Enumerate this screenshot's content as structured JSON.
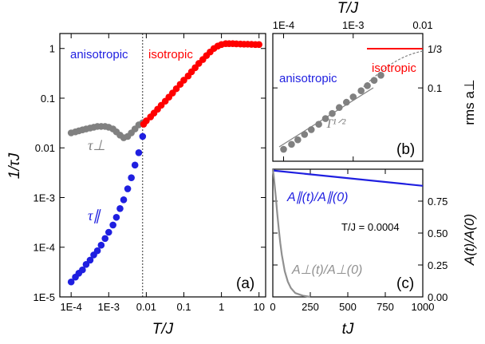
{
  "chart_data": [
    {
      "panel": "a",
      "type": "scatter",
      "panel_label": "(a)",
      "xlabel": "T/J",
      "ylabel": "1/τJ",
      "xscale": "log",
      "yscale": "log",
      "xlim": [
        5e-05,
        15
      ],
      "ylim": [
        1e-05,
        2
      ],
      "x_tick_labels": [
        "1E-4",
        "1E-3",
        "0.01",
        "0.1",
        "1",
        "10"
      ],
      "y_tick_labels": [
        "1E-5",
        "1E-4",
        "1E-3",
        "0.01",
        "0.1",
        "1"
      ],
      "crossover_line_x": 0.008,
      "region_labels": {
        "anisotropic": "anisotropic",
        "isotropic": "isotropic"
      },
      "series": [
        {
          "name": "τ∥",
          "color": "#1f1fe0",
          "x": [
            0.0001,
            0.00013,
            0.00016,
            0.0002,
            0.00025,
            0.00032,
            0.0004,
            0.0005,
            0.00063,
            0.0008,
            0.001,
            0.0013,
            0.0016,
            0.002,
            0.0025,
            0.0032,
            0.004,
            0.005,
            0.0063,
            0.008
          ],
          "y": [
            2e-05,
            2.5e-05,
            3e-05,
            3.5e-05,
            4.5e-05,
            5.5e-05,
            7e-05,
            8.5e-05,
            0.00011,
            0.00015,
            0.0002,
            0.00028,
            0.0004,
            0.0006,
            0.0009,
            0.0015,
            0.0025,
            0.0045,
            0.008,
            0.017
          ]
        },
        {
          "name": "τ⊥",
          "color": "#808080",
          "x": [
            0.0001,
            0.00013,
            0.00016,
            0.0002,
            0.00025,
            0.00032,
            0.0004,
            0.0005,
            0.00063,
            0.0008,
            0.001,
            0.0013,
            0.0016,
            0.002,
            0.0025,
            0.0032,
            0.004,
            0.005,
            0.0063,
            0.008
          ],
          "y": [
            0.02,
            0.021,
            0.022,
            0.023,
            0.024,
            0.025,
            0.026,
            0.027,
            0.027,
            0.027,
            0.026,
            0.024,
            0.021,
            0.018,
            0.016,
            0.017,
            0.02,
            0.024,
            0.029,
            0.032
          ]
        },
        {
          "name": "isotropic",
          "color": "#ff0000",
          "x": [
            0.0085,
            0.01,
            0.013,
            0.016,
            0.02,
            0.025,
            0.032,
            0.04,
            0.05,
            0.063,
            0.08,
            0.1,
            0.13,
            0.16,
            0.2,
            0.25,
            0.32,
            0.4,
            0.5,
            0.63,
            0.8,
            1.0,
            1.3,
            1.6,
            2.0,
            2.5,
            3.2,
            4.0,
            5.0,
            6.3,
            8.0,
            10.0
          ],
          "y": [
            0.03,
            0.035,
            0.042,
            0.05,
            0.06,
            0.072,
            0.087,
            0.105,
            0.127,
            0.155,
            0.19,
            0.23,
            0.28,
            0.34,
            0.41,
            0.5,
            0.6,
            0.72,
            0.85,
            1.0,
            1.12,
            1.2,
            1.25,
            1.25,
            1.25,
            1.24,
            1.23,
            1.22,
            1.22,
            1.21,
            1.2,
            1.2
          ]
        }
      ],
      "annotations": {
        "tau_par": "τ∥",
        "tau_perp": "τ⊥"
      }
    },
    {
      "panel": "b",
      "type": "scatter",
      "panel_label": "(b)",
      "xlabel": "T/J",
      "ylabel": "rms a⊥",
      "xscale": "log",
      "yscale": "log",
      "xlim": [
        7e-05,
        0.01
      ],
      "ylim": [
        0.02,
        0.33
      ],
      "x_tick_labels": [
        "1E-4",
        "1E-3",
        "0.01"
      ],
      "y_tick_labels": [
        "0.1"
      ],
      "reference_label": "1/3",
      "region_labels": {
        "anisotropic": "anisotropic",
        "isotropic": "isotropic"
      },
      "fit_label": "T¹ᐟ²",
      "series": [
        {
          "name": "rms a⊥",
          "color": "#808080",
          "x": [
            0.0001,
            0.00013,
            0.00016,
            0.0002,
            0.00025,
            0.00032,
            0.0004,
            0.0005,
            0.00063,
            0.0008,
            0.001,
            0.0013,
            0.0016,
            0.002,
            0.0025
          ],
          "y": [
            0.026,
            0.029,
            0.032,
            0.036,
            0.04,
            0.045,
            0.051,
            0.057,
            0.065,
            0.073,
            0.082,
            0.094,
            0.105,
            0.118,
            0.132
          ]
        }
      ]
    },
    {
      "panel": "c",
      "type": "line",
      "panel_label": "(c)",
      "xlabel": "tJ",
      "ylabel": "A(t)/A(0)",
      "xlim": [
        0,
        1000
      ],
      "ylim": [
        0,
        1
      ],
      "x_tick_labels": [
        "0",
        "250",
        "500",
        "750",
        "1000"
      ],
      "y_tick_labels": [
        "0.00",
        "0.25",
        "0.50",
        "0.75"
      ],
      "note": "T/J = 0.0004",
      "series": [
        {
          "name": "A∥(t)/A∥(0)",
          "color": "#1f1fe0",
          "x": [
            0,
            1000
          ],
          "y": [
            0.99,
            0.87
          ]
        },
        {
          "name": "A⊥(t)/A⊥(0)",
          "color": "#909090",
          "x": [
            0,
            5,
            10,
            20,
            30,
            40,
            50,
            60,
            80,
            100,
            120,
            150,
            200,
            250
          ],
          "y": [
            1.0,
            0.96,
            0.9,
            0.78,
            0.65,
            0.53,
            0.42,
            0.33,
            0.2,
            0.12,
            0.07,
            0.03,
            0.01,
            0.0
          ]
        }
      ]
    }
  ]
}
